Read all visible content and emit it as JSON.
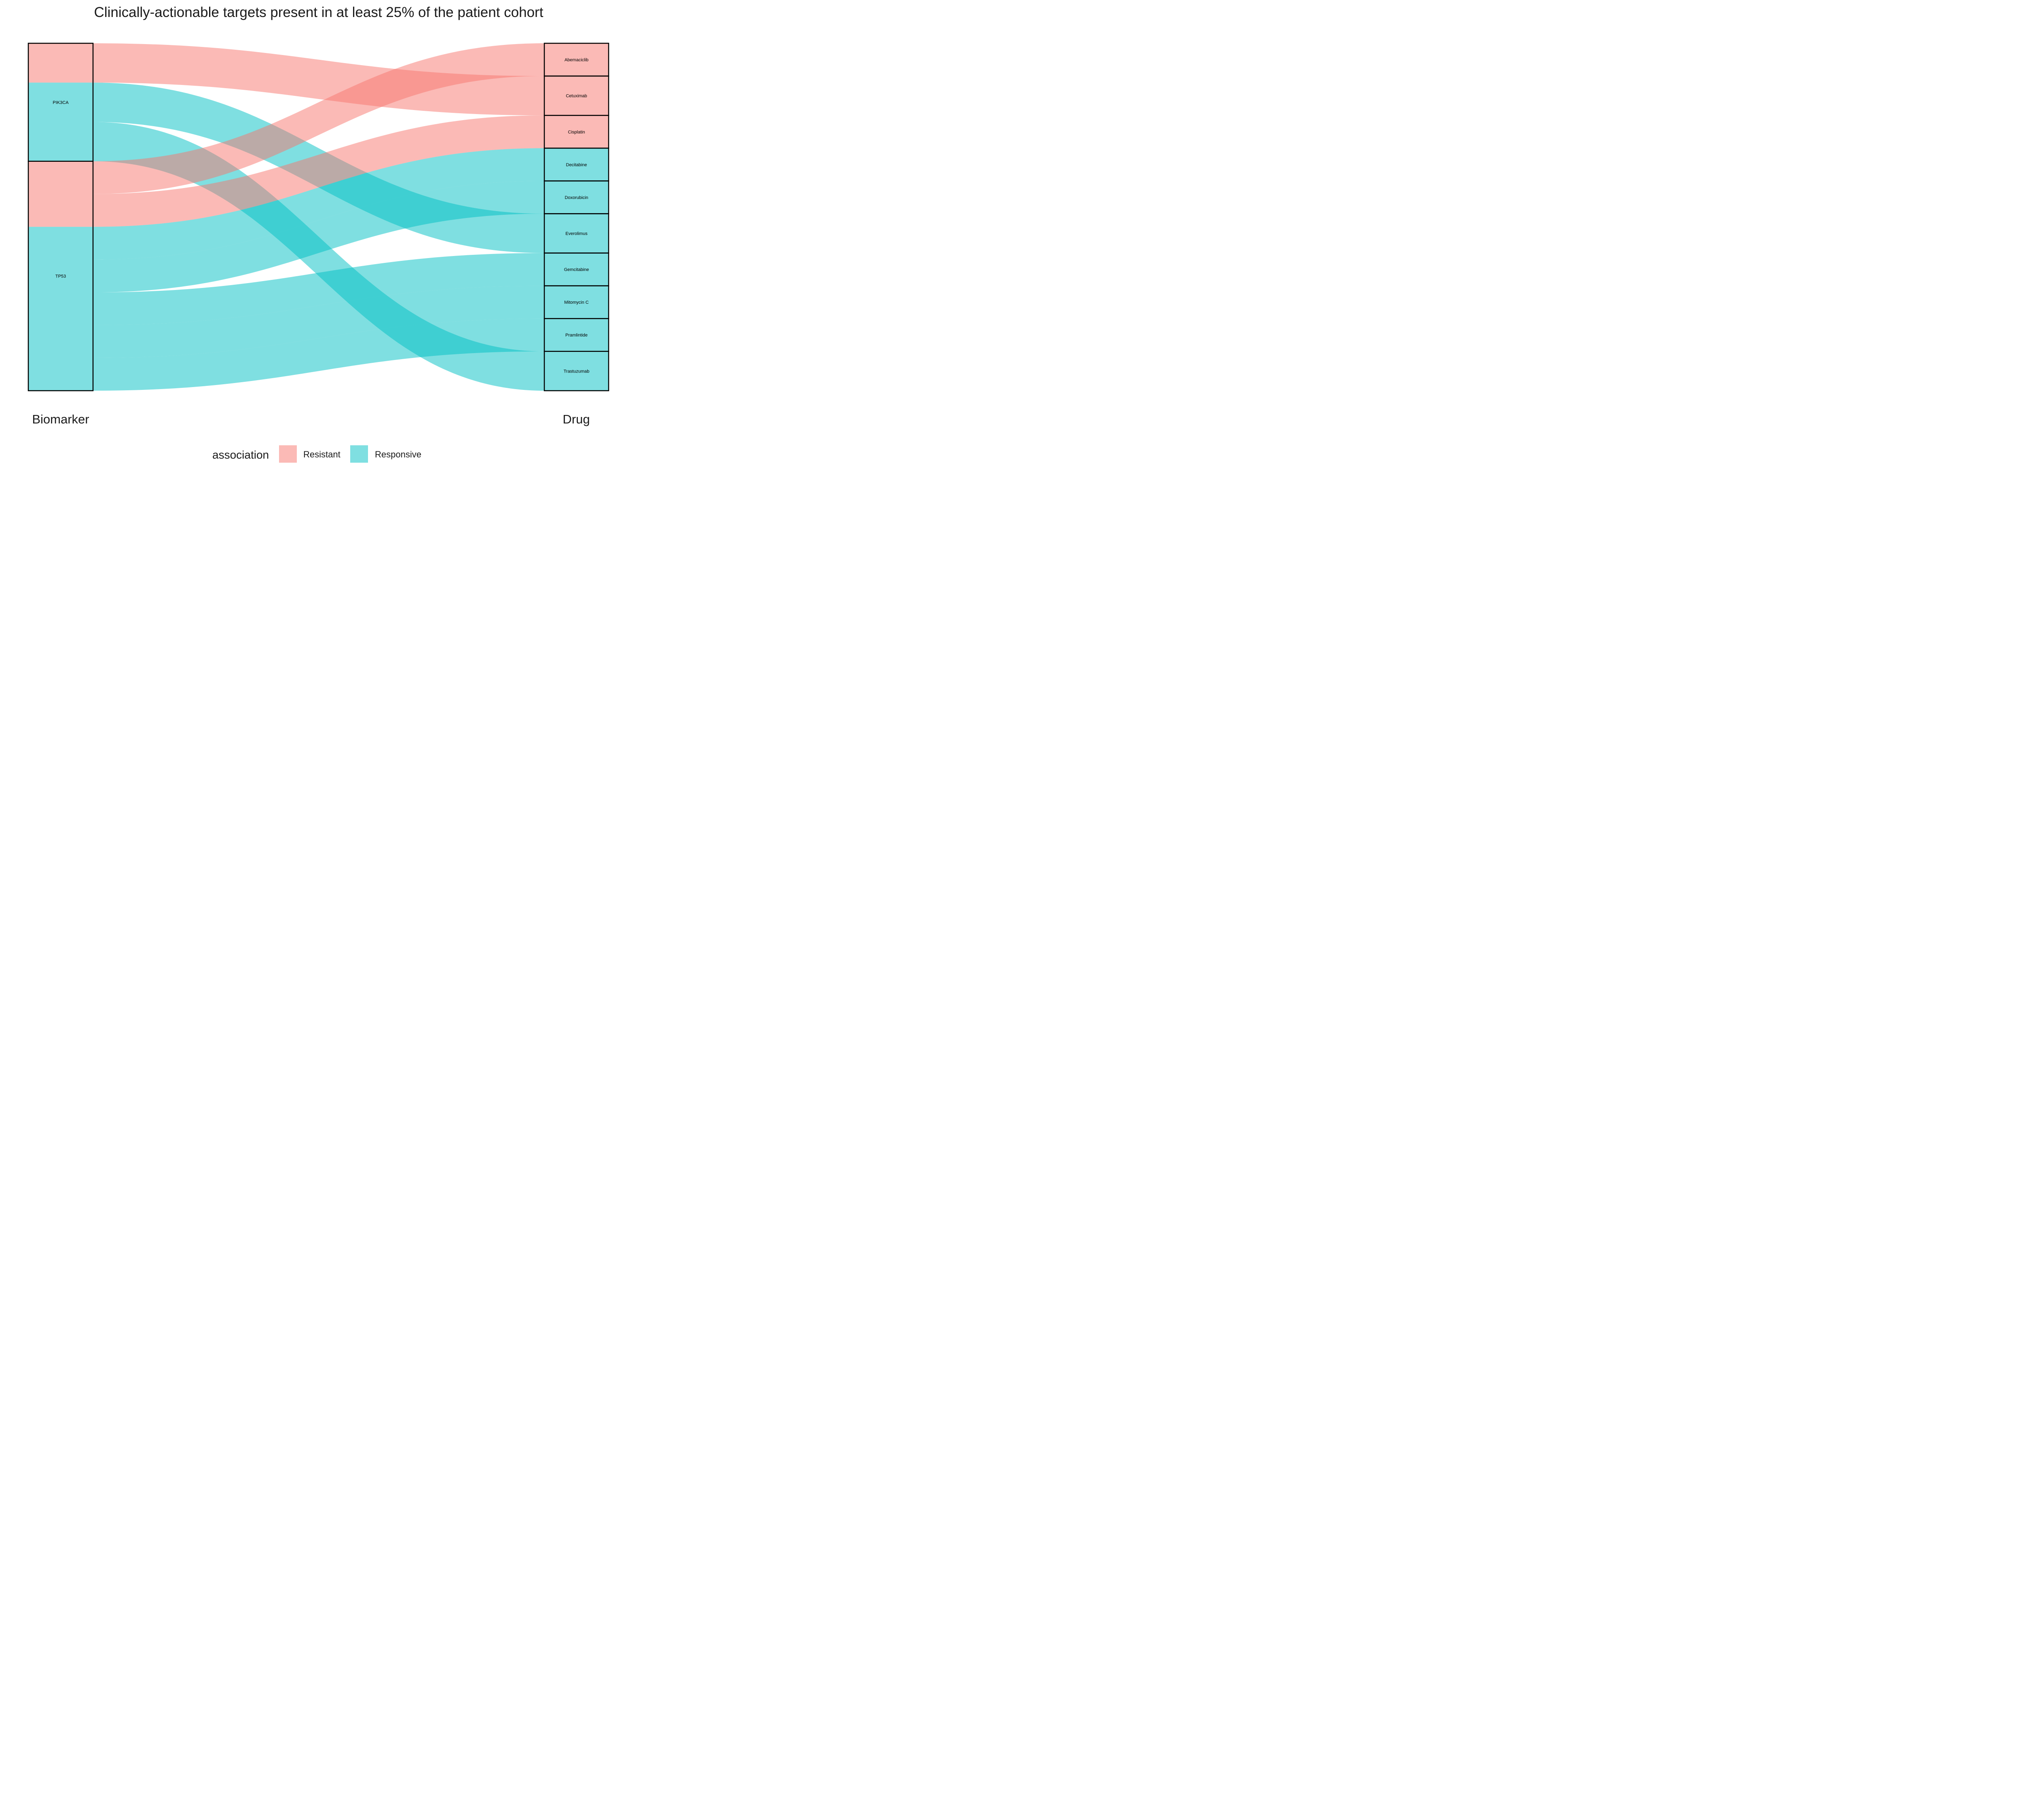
{
  "chart_data": {
    "type": "alluvial",
    "title": "Clinically-actionable targets present in at least 25% of the patient cohort",
    "axes": [
      "Biomarker",
      "Drug"
    ],
    "legend": {
      "title": "association",
      "position": "bottom",
      "entries": [
        {
          "name": "Resistant",
          "color": "#F8766D"
        },
        {
          "name": "Responsive",
          "color": "#00BFC4"
        }
      ]
    },
    "biomarkers": [
      "PIK3CA",
      "TP53"
    ],
    "drugs": [
      "Abemaciclib",
      "Cetuximab",
      "Cisplatin",
      "Decitabine",
      "Doxorubicin",
      "Everolimus",
      "Gemcitabine",
      "Mitomycin C",
      "Pramlintide",
      "Trastuzumab"
    ],
    "flows": [
      {
        "biomarker": "PIK3CA",
        "drug": "Cetuximab",
        "association": "Resistant",
        "value": 1.2
      },
      {
        "biomarker": "PIK3CA",
        "drug": "Everolimus",
        "association": "Responsive",
        "value": 1.2
      },
      {
        "biomarker": "PIK3CA",
        "drug": "Trastuzumab",
        "association": "Responsive",
        "value": 1.2
      },
      {
        "biomarker": "TP53",
        "drug": "Abemaciclib",
        "association": "Resistant",
        "value": 1.0
      },
      {
        "biomarker": "TP53",
        "drug": "Cisplatin",
        "association": "Resistant",
        "value": 1.0
      },
      {
        "biomarker": "TP53",
        "drug": "Decitabine",
        "association": "Responsive",
        "value": 1.0
      },
      {
        "biomarker": "TP53",
        "drug": "Doxorubicin",
        "association": "Responsive",
        "value": 1.0
      },
      {
        "biomarker": "TP53",
        "drug": "Gemcitabine",
        "association": "Responsive",
        "value": 1.0
      },
      {
        "biomarker": "TP53",
        "drug": "Mitomycin C",
        "association": "Responsive",
        "value": 1.0
      },
      {
        "biomarker": "TP53",
        "drug": "Pramlintide",
        "association": "Responsive",
        "value": 1.0
      }
    ],
    "node_fill": {
      "PIK3CA": [
        {
          "association": "Resistant",
          "value": 1.2
        },
        {
          "association": "Responsive",
          "value": 2.4
        }
      ],
      "TP53": [
        {
          "association": "Resistant",
          "value": 2.0
        },
        {
          "association": "Responsive",
          "value": 5.0
        }
      ]
    }
  }
}
